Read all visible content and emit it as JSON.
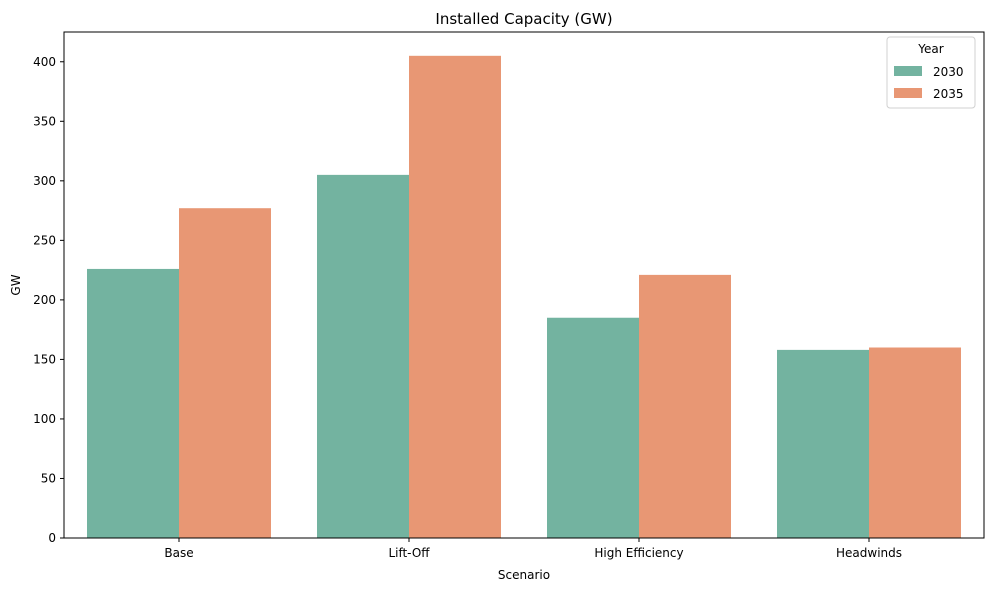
{
  "chart_data": {
    "type": "bar",
    "title": "Installed Capacity (GW)",
    "xlabel": "Scenario",
    "ylabel": "GW",
    "categories": [
      "Base",
      "Lift-Off",
      "High Efficiency",
      "Headwinds"
    ],
    "series": [
      {
        "name": "2030",
        "color": "#73b3a0",
        "values": [
          226,
          305,
          185,
          158
        ]
      },
      {
        "name": "2035",
        "color": "#e89774",
        "values": [
          277,
          405,
          221,
          160
        ]
      }
    ],
    "ylim": [
      0,
      425
    ],
    "yticks": [
      0,
      50,
      100,
      150,
      200,
      250,
      300,
      350,
      400
    ],
    "grid": false,
    "legend": {
      "title": "Year",
      "placement": "top-right"
    }
  }
}
